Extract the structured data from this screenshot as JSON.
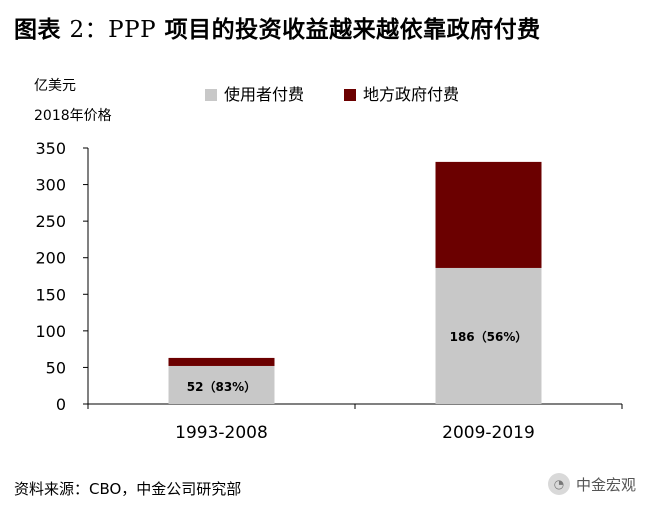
{
  "title": {
    "prefix": "图表",
    "number": "2：PPP",
    "text": "项目的投资收益越来越依靠政府付费"
  },
  "source": "资料来源：CBO，中金公司研究部",
  "watermark": "中金宏观",
  "colors": {
    "user_pay": "#c8c8c8",
    "gov_pay": "#6b0000",
    "axis": "#000000"
  },
  "chart_data": {
    "type": "bar",
    "stacked": true,
    "title": "PPP 项目的投资收益越来越依靠政府付费",
    "unit_label": "亿美元",
    "price_basis": "2018年价格",
    "categories": [
      "1993-2008",
      "2009-2019"
    ],
    "series": [
      {
        "name": "使用者付费",
        "values": [
          52,
          186
        ]
      },
      {
        "name": "地方政府付费",
        "values": [
          11,
          145
        ]
      }
    ],
    "data_labels": [
      "52（83%）",
      "186（56%）"
    ],
    "ylim": [
      0,
      350
    ],
    "yticks": [
      0,
      50,
      100,
      150,
      200,
      250,
      300,
      350
    ],
    "grid": false,
    "legend_position": "top"
  }
}
